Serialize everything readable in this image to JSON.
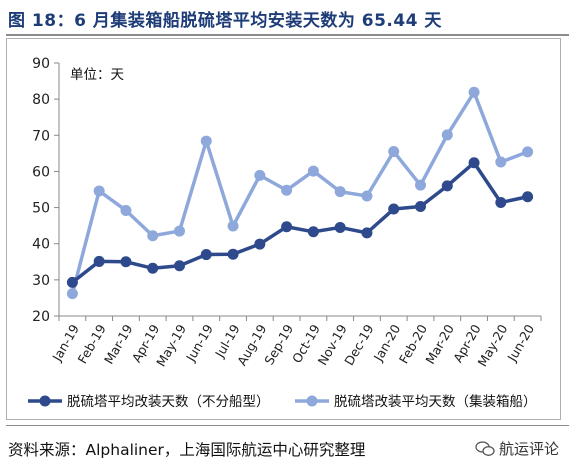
{
  "title": "图 18：6 月集装箱船脱硫塔平均安装天数为 65.44 天",
  "source": "资料来源：Alphaliner，上海国际航运中心研究整理",
  "watermark": "航运评论",
  "watermark_icon": "chat-bubbles-icon",
  "colors": {
    "dark_series": "#2e4a8c",
    "light_series": "#8fa8dc",
    "title": "#1e3d78"
  },
  "chart_data": {
    "type": "line",
    "unit_label": "单位：天",
    "categories": [
      "Jan-19",
      "Feb-19",
      "Mar-19",
      "Apr-19",
      "May-19",
      "Jun-19",
      "Jul-19",
      "Aug-19",
      "Sep-19",
      "Oct-19",
      "Nov-19",
      "Dec-19",
      "Jan-20",
      "Feb-20",
      "Mar-20",
      "Apr-20",
      "May-20",
      "Jun-20"
    ],
    "ylim": [
      20,
      90
    ],
    "yticks": [
      20,
      30,
      40,
      50,
      60,
      70,
      80,
      90
    ],
    "grid": false,
    "legend_position": "bottom",
    "series": [
      {
        "name": "脱硫塔平均改装天数（不分船型）",
        "color": "#2e4a8c",
        "values": [
          29.3,
          35.1,
          35.0,
          33.2,
          33.9,
          37.0,
          37.1,
          39.9,
          44.7,
          43.3,
          44.5,
          43.0,
          49.6,
          50.3,
          56.0,
          62.4,
          51.4,
          53.0
        ]
      },
      {
        "name": "脱硫塔改装平均天数（集装箱船）",
        "color": "#8fa8dc",
        "values": [
          26.2,
          54.6,
          49.2,
          42.2,
          43.5,
          68.4,
          44.9,
          58.9,
          54.8,
          60.1,
          54.4,
          53.2,
          65.5,
          56.2,
          70.1,
          81.9,
          62.6,
          65.4
        ]
      }
    ]
  }
}
